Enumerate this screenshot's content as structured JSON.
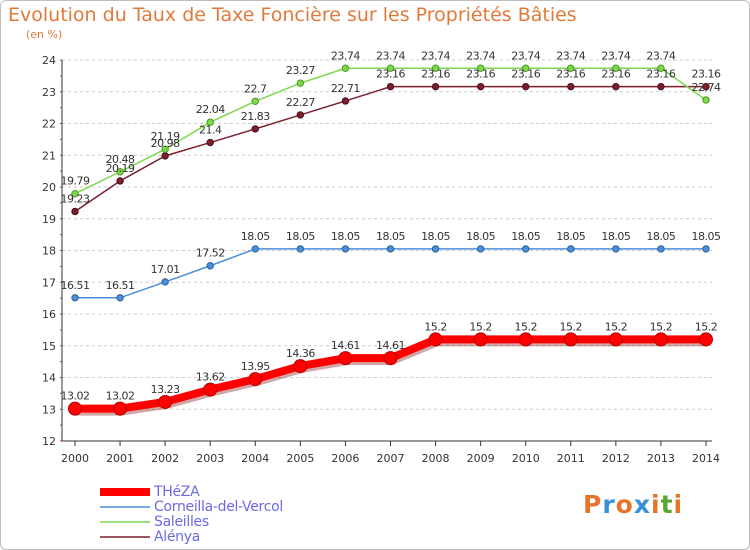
{
  "header": {
    "title": "Evolution du Taux de Taxe Foncière sur les Propriétés Bâties",
    "unit": "(en %)"
  },
  "brand": {
    "letters": [
      "P",
      "r",
      "o",
      "x",
      "i",
      "t",
      "i"
    ]
  },
  "colors": {
    "grid": "#cccccc",
    "axis": "#333333",
    "tick_text": "#333333",
    "brand_letters": [
      "#e8742a",
      "#3b8fd6",
      "#e8742a",
      "#3b8fd6",
      "#e8742a",
      "#5aa832",
      "#e8742a"
    ]
  },
  "chart_data": {
    "type": "line",
    "x": [
      2000,
      2001,
      2002,
      2003,
      2004,
      2005,
      2006,
      2007,
      2008,
      2009,
      2010,
      2011,
      2012,
      2013,
      2014
    ],
    "ylim": [
      12,
      24
    ],
    "yticks": [
      12,
      13,
      14,
      15,
      16,
      17,
      18,
      19,
      20,
      21,
      22,
      23,
      24
    ],
    "grid": "horizontal dashed",
    "legend": "bottom-left",
    "series": [
      {
        "name": "THéZA",
        "color": "#ff0000",
        "values": [
          13.02,
          13.02,
          13.23,
          13.62,
          13.95,
          14.36,
          14.61,
          14.61,
          15.2,
          15.2,
          15.2,
          15.2,
          15.2,
          15.2,
          15.2
        ],
        "labels": [
          "13.02",
          "13.02",
          "13.23",
          "13.62",
          "13.95",
          "14.36",
          "14.61",
          "14.61",
          "15.2",
          "15.2",
          "15.2",
          "15.2",
          "15.2",
          "15.2",
          "15.2"
        ]
      },
      {
        "name": "Corneilla-del-Vercol",
        "color": "#4a90d9",
        "values": [
          16.51,
          16.51,
          17.01,
          17.52,
          18.05,
          18.05,
          18.05,
          18.05,
          18.05,
          18.05,
          18.05,
          18.05,
          18.05,
          18.05,
          18.05
        ],
        "labels": [
          "16.51",
          "16.51",
          "17.01",
          "17.52",
          "18.05",
          "18.05",
          "18.05",
          "18.05",
          "18.05",
          "18.05",
          "18.05",
          "18.05",
          "18.05",
          "18.05",
          "18.05"
        ]
      },
      {
        "name": "Saleilles",
        "color": "#7dd84a",
        "values": [
          19.79,
          20.48,
          21.19,
          22.04,
          22.7,
          23.27,
          23.74,
          23.74,
          23.74,
          23.74,
          23.74,
          23.74,
          23.74,
          23.74,
          22.74
        ],
        "labels": [
          "19.79",
          "20.48",
          "21.19",
          "22.04",
          "22.7",
          "23.27",
          "23.74",
          "23.74",
          "23.74",
          "23.74",
          "23.74",
          "23.74",
          "23.74",
          "23.74",
          "22.74"
        ]
      },
      {
        "name": "Alénya",
        "color": "#7a1f2b",
        "values": [
          19.23,
          20.19,
          20.98,
          21.4,
          21.83,
          22.27,
          22.71,
          23.16,
          23.16,
          23.16,
          23.16,
          23.16,
          23.16,
          23.16,
          23.16
        ],
        "labels": [
          "19.23",
          "20.19",
          "20.98",
          "21.4",
          "21.83",
          "22.27",
          "22.71",
          "23.16",
          "23.16",
          "23.16",
          "23.16",
          "23.16",
          "23.16",
          "23.16",
          "23.16"
        ]
      }
    ]
  }
}
